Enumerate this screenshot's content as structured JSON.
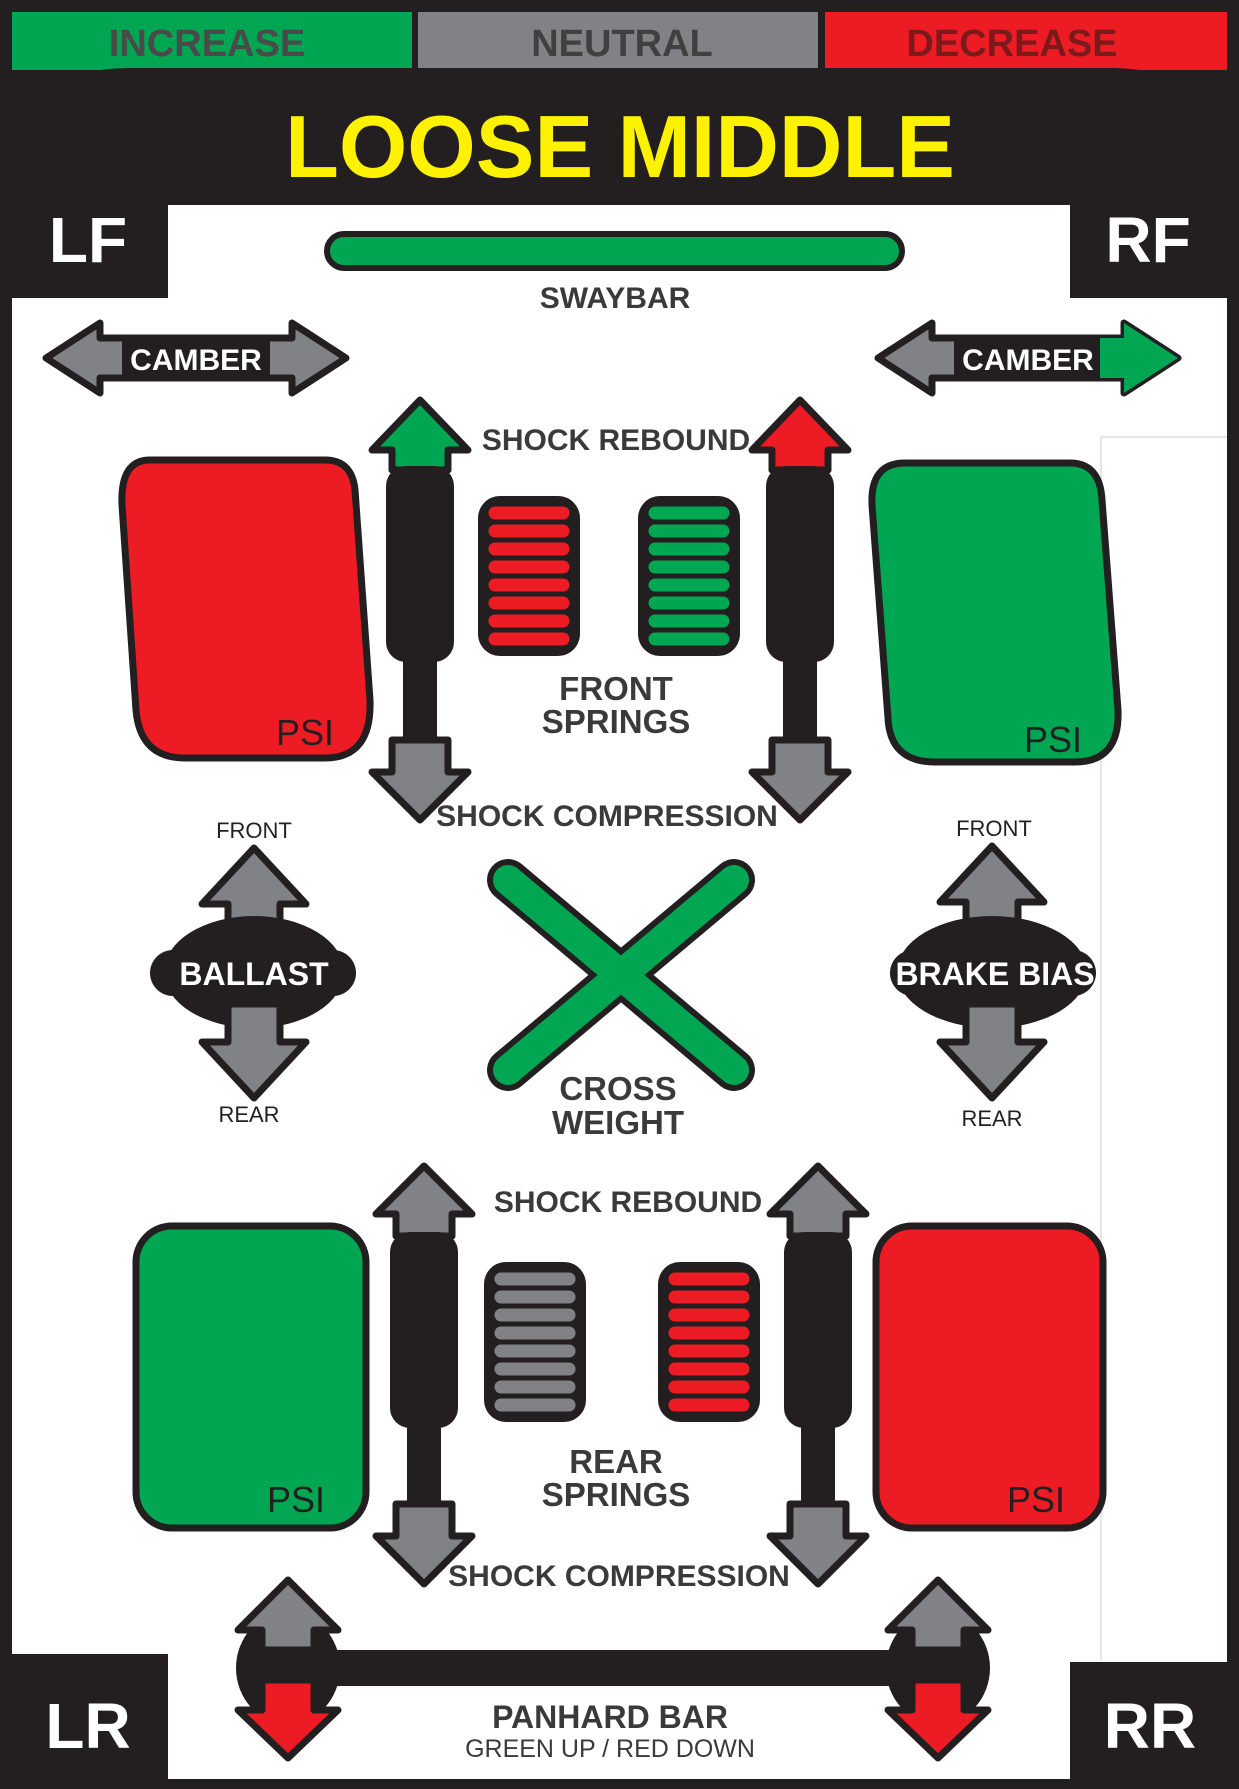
{
  "legend": {
    "increase": "INCREASE",
    "neutral": "NEUTRAL",
    "decrease": "DECREASE"
  },
  "title": "LOOSE MIDDLE",
  "corners": {
    "lf": "LF",
    "rf": "RF",
    "lr": "LR",
    "rr": "RR"
  },
  "labels": {
    "swaybar": "SWAYBAR",
    "camber_left": "CAMBER",
    "camber_right": "CAMBER",
    "front_shock_rebound": "SHOCK REBOUND",
    "front_shock_compression": "SHOCK COMPRESSION",
    "front_springs_1": "FRONT",
    "front_springs_2": "SPRINGS",
    "ballast": "BALLAST",
    "brake_bias": "BRAKE BIAS",
    "front_left": "FRONT",
    "rear_left": "REAR",
    "front_right": "FRONT",
    "rear_right": "REAR",
    "cross_weight_1": "CROSS",
    "cross_weight_2": "WEIGHT",
    "rear_shock_rebound": "SHOCK REBOUND",
    "rear_shock_compression": "SHOCK COMPRESSION",
    "rear_springs_1": "REAR",
    "rear_springs_2": "SPRINGS",
    "panhard": "PANHARD BAR",
    "panhard_sub": "GREEN UP / RED DOWN",
    "psi_lf": "PSI",
    "psi_rf": "PSI",
    "psi_lr": "PSI",
    "psi_rr": "PSI"
  },
  "colors": {
    "increase": "#00a651",
    "neutral": "#808285",
    "decrease": "#ed1c24",
    "title": "#fff200",
    "frame": "#231f20"
  },
  "adjustments": {
    "swaybar": "increase",
    "camber_lf": "neutral",
    "camber_rf": "increase",
    "tire_lf": "decrease",
    "tire_rf": "increase",
    "tire_lr": "increase",
    "tire_rr": "decrease",
    "front_spring_left": "decrease",
    "front_spring_right": "increase",
    "rear_spring_left": "neutral",
    "rear_spring_right": "decrease",
    "shock_lf_rebound": "increase",
    "shock_rf_rebound": "decrease",
    "cross_weight": "increase",
    "panhard": "decrease"
  }
}
